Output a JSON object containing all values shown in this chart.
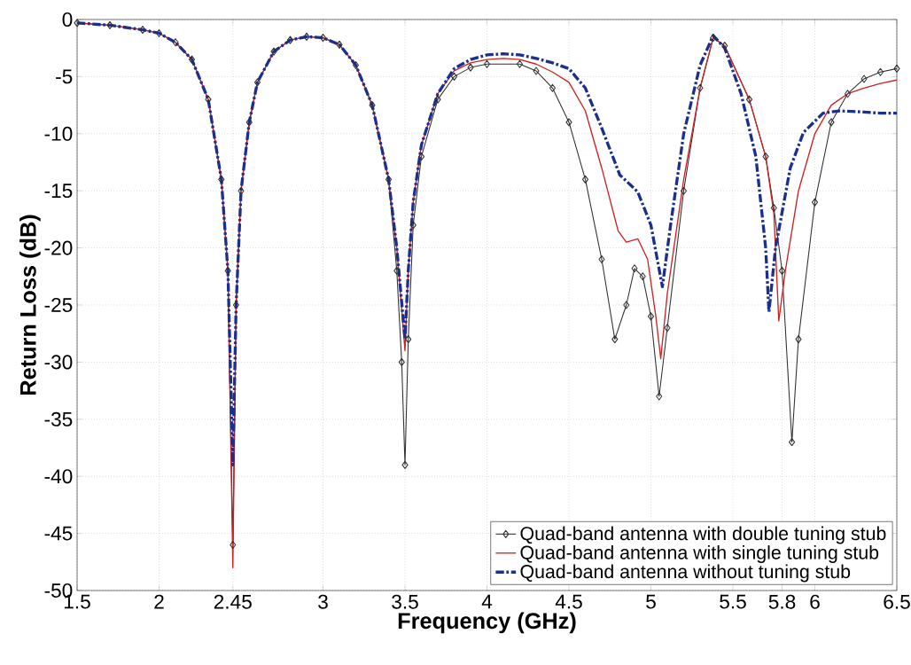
{
  "chart_data": {
    "type": "line",
    "xlabel": "Frequency (GHz)",
    "ylabel": "Return Loss (dB)",
    "xlim": [
      1.5,
      6.5
    ],
    "ylim": [
      -50,
      0
    ],
    "xticks": [
      1.5,
      2,
      2.45,
      3,
      3.5,
      4,
      4.5,
      5,
      5.5,
      5.8,
      6,
      6.5
    ],
    "yticks": [
      0,
      -5,
      -10,
      -15,
      -20,
      -25,
      -30,
      -35,
      -40,
      -45,
      -50
    ],
    "grid": true,
    "legend": "bottom right",
    "series": [
      {
        "name": "Quad-band antenna with double tuning stub",
        "color": "#303030",
        "marker": "diamond",
        "line_style": "solid",
        "x": [
          1.5,
          1.7,
          1.9,
          2.0,
          2.1,
          2.2,
          2.3,
          2.38,
          2.42,
          2.45,
          2.47,
          2.5,
          2.55,
          2.6,
          2.7,
          2.8,
          2.9,
          3.0,
          3.1,
          3.2,
          3.3,
          3.4,
          3.45,
          3.48,
          3.5,
          3.52,
          3.55,
          3.6,
          3.7,
          3.8,
          3.9,
          4.0,
          4.2,
          4.3,
          4.4,
          4.5,
          4.6,
          4.7,
          4.78,
          4.85,
          4.9,
          4.95,
          5.0,
          5.05,
          5.1,
          5.2,
          5.3,
          5.38,
          5.45,
          5.6,
          5.7,
          5.75,
          5.8,
          5.86,
          5.9,
          6.0,
          6.1,
          6.2,
          6.3,
          6.4,
          6.5
        ],
        "values": [
          -0.3,
          -0.5,
          -0.9,
          -1.2,
          -2,
          -3.5,
          -7,
          -14,
          -22,
          -46,
          -25,
          -15,
          -9,
          -5.5,
          -2.8,
          -1.8,
          -1.5,
          -1.6,
          -2.2,
          -4,
          -7.5,
          -14,
          -22,
          -30,
          -39,
          -28,
          -18,
          -12,
          -7,
          -5,
          -4.2,
          -3.9,
          -3.9,
          -4.5,
          -6,
          -9,
          -14,
          -21,
          -28,
          -25,
          -21.8,
          -22.5,
          -26,
          -33,
          -27,
          -15,
          -6,
          -1.6,
          -2.3,
          -7,
          -12,
          -16.5,
          -22,
          -37,
          -28,
          -16,
          -9,
          -6.5,
          -5.2,
          -4.6,
          -4.3
        ]
      },
      {
        "name": "Quad-band antenna with single tuning stub",
        "color": "#d02020",
        "marker": "none",
        "line_style": "solid",
        "x": [
          1.5,
          1.7,
          1.9,
          2.0,
          2.1,
          2.2,
          2.3,
          2.38,
          2.42,
          2.45,
          2.47,
          2.5,
          2.55,
          2.6,
          2.7,
          2.8,
          2.9,
          3.0,
          3.1,
          3.2,
          3.3,
          3.4,
          3.45,
          3.5,
          3.52,
          3.55,
          3.6,
          3.7,
          3.8,
          3.9,
          4.0,
          4.1,
          4.2,
          4.3,
          4.4,
          4.5,
          4.6,
          4.7,
          4.8,
          4.85,
          4.92,
          4.98,
          5.03,
          5.06,
          5.1,
          5.2,
          5.3,
          5.38,
          5.45,
          5.6,
          5.7,
          5.75,
          5.78,
          5.82,
          5.9,
          6.0,
          6.1,
          6.2,
          6.3,
          6.4,
          6.5
        ],
        "values": [
          -0.3,
          -0.5,
          -0.9,
          -1.2,
          -2,
          -3.5,
          -7,
          -14,
          -22,
          -48,
          -25,
          -15,
          -9,
          -5.5,
          -2.8,
          -1.8,
          -1.5,
          -1.6,
          -2.2,
          -4,
          -7.5,
          -14,
          -20,
          -29,
          -22,
          -16,
          -11,
          -6.5,
          -4.5,
          -3.8,
          -3.5,
          -3.4,
          -3.5,
          -3.9,
          -4.6,
          -5.5,
          -8,
          -13,
          -18.5,
          -19.5,
          -19.2,
          -21,
          -26,
          -29.7,
          -24,
          -14,
          -6,
          -1.6,
          -2.3,
          -7,
          -12,
          -17,
          -26.4,
          -22,
          -15,
          -10,
          -7.5,
          -6.5,
          -6,
          -5.6,
          -5.3
        ]
      },
      {
        "name": "Quad-band antenna without tuning stub",
        "color": "#1a2f8f",
        "marker": "none",
        "line_style": "dashdotted",
        "x": [
          1.5,
          1.7,
          1.9,
          2.0,
          2.1,
          2.2,
          2.3,
          2.38,
          2.42,
          2.45,
          2.47,
          2.5,
          2.55,
          2.6,
          2.7,
          2.8,
          2.9,
          3.0,
          3.1,
          3.2,
          3.3,
          3.4,
          3.45,
          3.5,
          3.52,
          3.55,
          3.6,
          3.7,
          3.8,
          3.9,
          4.0,
          4.1,
          4.2,
          4.3,
          4.4,
          4.5,
          4.6,
          4.7,
          4.81,
          4.92,
          5.0,
          5.07,
          5.12,
          5.2,
          5.3,
          5.38,
          5.45,
          5.55,
          5.64,
          5.7,
          5.72,
          5.76,
          5.85,
          5.93,
          6.05,
          6.15,
          6.3,
          6.4,
          6.5
        ],
        "values": [
          -0.3,
          -0.5,
          -0.9,
          -1.2,
          -2,
          -3.5,
          -7,
          -14,
          -22,
          -39,
          -25,
          -15,
          -9,
          -5.5,
          -2.8,
          -1.8,
          -1.5,
          -1.6,
          -2.2,
          -4,
          -7.5,
          -14,
          -20,
          -28,
          -22,
          -16,
          -11,
          -6.5,
          -4.3,
          -3.5,
          -3.1,
          -3.0,
          -3.1,
          -3.4,
          -3.8,
          -4.3,
          -6,
          -9.5,
          -13.6,
          -15.1,
          -18,
          -23.4,
          -18,
          -10,
          -4,
          -1.4,
          -2.5,
          -6.5,
          -12,
          -20,
          -25.6,
          -20,
          -13,
          -9.9,
          -8.2,
          -8,
          -8.1,
          -8.2,
          -8.2
        ]
      }
    ]
  }
}
